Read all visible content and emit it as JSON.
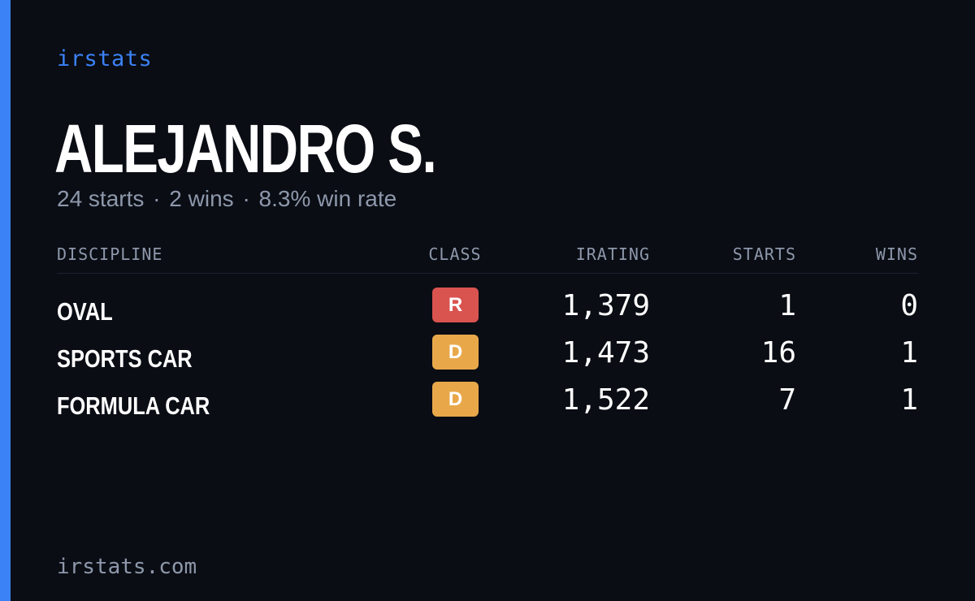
{
  "colors": {
    "background": "#0a0d14",
    "accent": "#3b82f6",
    "muted": "#8e98ab",
    "text": "#ffffff",
    "class_r": "#d9534f",
    "class_d": "#e8a84a"
  },
  "brand": "irstats",
  "driver": {
    "name": "ALEJANDRO S.",
    "starts": "24 starts",
    "wins": "2 wins",
    "win_rate": "8.3% win rate",
    "separator": "·"
  },
  "table": {
    "headers": {
      "discipline": "DISCIPLINE",
      "class": "CLASS",
      "irating": "IRATING",
      "starts": "STARTS",
      "wins": "WINS"
    },
    "rows": [
      {
        "discipline": "OVAL",
        "class": "R",
        "irating": "1,379",
        "starts": "1",
        "wins": "0"
      },
      {
        "discipline": "SPORTS CAR",
        "class": "D",
        "irating": "1,473",
        "starts": "16",
        "wins": "1"
      },
      {
        "discipline": "FORMULA CAR",
        "class": "D",
        "irating": "1,522",
        "starts": "7",
        "wins": "1"
      }
    ]
  },
  "footer": "irstats.com"
}
